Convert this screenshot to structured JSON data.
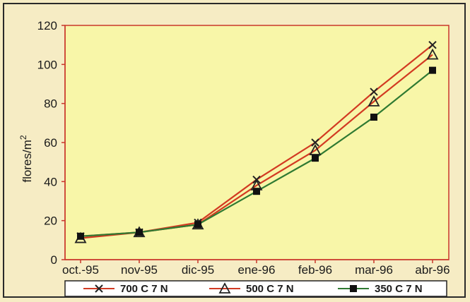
{
  "chart_data": {
    "type": "line",
    "title": "",
    "xlabel": "",
    "ylabel": "flores/m",
    "ylabel_superscript": "2",
    "categories": [
      "oct.-95",
      "nov-95",
      "dic-95",
      "ene-96",
      "feb-96",
      "mar-96",
      "abr-96"
    ],
    "ylim": [
      0,
      120
    ],
    "yticks": [
      0,
      20,
      40,
      60,
      80,
      100,
      120
    ],
    "grid": false,
    "legend_position": "bottom",
    "series": [
      {
        "name": "700 C 7 N",
        "color": "#d23a22",
        "marker": "x",
        "values": [
          12,
          14,
          19,
          41,
          60,
          86,
          110
        ]
      },
      {
        "name": "500 C 7 N",
        "color": "#d23a22",
        "marker": "triangle-open",
        "values": [
          11,
          14,
          18,
          38,
          56,
          81,
          105
        ]
      },
      {
        "name": "350 C 7 N",
        "color": "#2f7a32",
        "marker": "square",
        "values": [
          12,
          14,
          18,
          35,
          52,
          73,
          97
        ]
      }
    ],
    "plot_background": "#f8f6a8",
    "frame_background": "#f6ecc4"
  }
}
